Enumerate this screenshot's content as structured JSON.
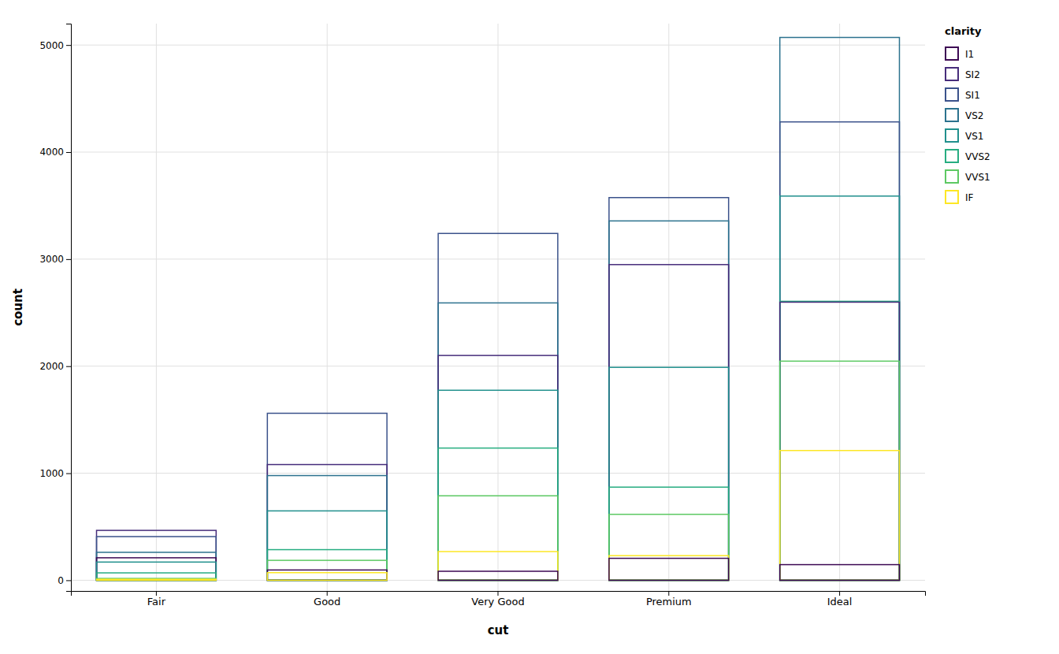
{
  "chart_data": {
    "type": "bar",
    "stacked": false,
    "xlabel": "cut",
    "ylabel": "count",
    "legend_title": "clarity",
    "legend": "right",
    "grid": true,
    "categories": [
      "Fair",
      "Good",
      "Very Good",
      "Premium",
      "Ideal"
    ],
    "series": [
      {
        "name": "I1",
        "color": "#3D0954",
        "values": [
          210,
          96,
          84,
          205,
          146
        ]
      },
      {
        "name": "SI2",
        "color": "#472D7B",
        "values": [
          466,
          1081,
          2100,
          2949,
          2598
        ]
      },
      {
        "name": "SI1",
        "color": "#3B528B",
        "values": [
          408,
          1560,
          3240,
          3575,
          4282
        ]
      },
      {
        "name": "VS2",
        "color": "#2C728E",
        "values": [
          261,
          978,
          2591,
          3357,
          5071
        ]
      },
      {
        "name": "VS1",
        "color": "#21908D",
        "values": [
          170,
          648,
          1775,
          1989,
          3589
        ]
      },
      {
        "name": "VVS2",
        "color": "#27AD81",
        "values": [
          69,
          286,
          1235,
          870,
          2606
        ]
      },
      {
        "name": "VVS1",
        "color": "#5DC963",
        "values": [
          17,
          186,
          789,
          616,
          2047
        ]
      },
      {
        "name": "IF",
        "color": "#FDE725",
        "values": [
          9,
          71,
          268,
          230,
          1212
        ]
      }
    ],
    "ylim": [
      -100,
      5200
    ],
    "yticks": [
      0,
      1000,
      2000,
      3000,
      4000,
      5000
    ]
  }
}
